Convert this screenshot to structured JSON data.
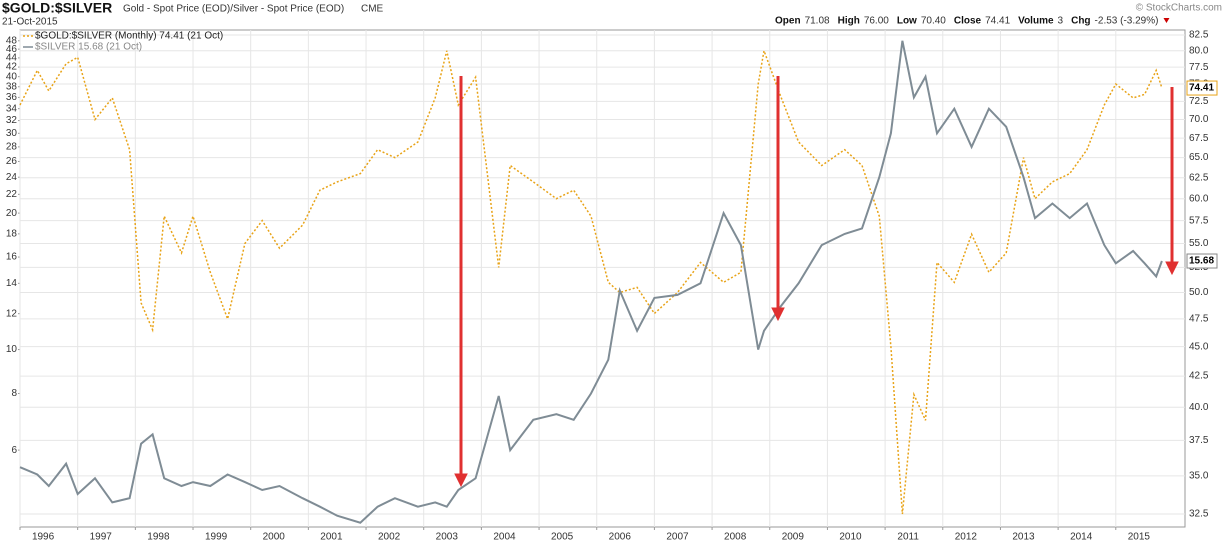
{
  "chart_data": {
    "type": "line",
    "title": "$GOLD:$SILVER",
    "subtitle": "Gold - Spot Price (EOD)/Silver - Spot Price (EOD)",
    "exchange": "CME",
    "date": "21-Oct-2015",
    "credit": "© StockCharts.com",
    "quote": [
      {
        "label": "Open",
        "value": "71.08"
      },
      {
        "label": "High",
        "value": "76.00"
      },
      {
        "label": "Low",
        "value": "70.40"
      },
      {
        "label": "Close",
        "value": "74.41"
      },
      {
        "label": "Volume",
        "value": "3"
      },
      {
        "label": "Chg",
        "value": "-2.53 (-3.29%)"
      }
    ],
    "x": [
      1996.0,
      1996.3,
      1996.5,
      1996.8,
      1997.0,
      1997.3,
      1997.6,
      1997.9,
      1998.1,
      1998.3,
      1998.5,
      1998.8,
      1999.0,
      1999.3,
      1999.6,
      1999.9,
      2000.2,
      2000.5,
      2000.9,
      2001.2,
      2001.5,
      2001.9,
      2002.2,
      2002.5,
      2002.9,
      2003.2,
      2003.4,
      2003.6,
      2003.9,
      2004.3,
      2004.5,
      2004.9,
      2005.3,
      2005.6,
      2005.9,
      2006.2,
      2006.4,
      2006.7,
      2007.0,
      2007.4,
      2007.8,
      2008.2,
      2008.5,
      2008.8,
      2008.9,
      2009.2,
      2009.5,
      2009.9,
      2010.3,
      2010.6,
      2010.9,
      2011.1,
      2011.3,
      2011.5,
      2011.7,
      2011.9,
      2012.2,
      2012.5,
      2012.8,
      2013.1,
      2013.4,
      2013.6,
      2013.9,
      2014.2,
      2014.5,
      2014.8,
      2015.0,
      2015.3,
      2015.5,
      2015.7,
      2015.8
    ],
    "series": [
      {
        "name": "$GOLD:$SILVER (Monthly) 74.41 (21 Oct)",
        "color": "#e8a317",
        "axis": "y2",
        "dashed": true,
        "values": [
          72,
          77,
          74,
          78,
          79,
          70,
          73,
          66,
          49,
          46.5,
          58,
          54,
          58,
          52,
          47.5,
          55,
          57.5,
          54.5,
          57,
          61,
          62,
          63,
          66,
          65,
          67,
          73,
          80,
          72,
          76,
          52.5,
          64,
          62,
          60,
          61,
          58,
          51,
          50,
          50.5,
          48,
          50,
          53,
          51,
          52,
          75,
          80,
          73,
          67,
          64,
          66,
          64,
          58,
          45,
          32.5,
          41,
          39,
          53,
          51,
          56,
          52,
          54,
          65,
          60,
          62,
          63,
          66,
          72,
          75,
          73,
          73.5,
          77,
          74.41
        ]
      },
      {
        "name": "$SILVER 15.68 (21 Oct)",
        "color": "#7f8c95",
        "axis": "y",
        "values": [
          5.5,
          5.3,
          5.0,
          5.6,
          4.8,
          5.2,
          4.6,
          4.7,
          6.2,
          6.5,
          5.2,
          5.0,
          5.1,
          5.0,
          5.3,
          5.1,
          4.9,
          5.0,
          4.7,
          4.5,
          4.3,
          4.15,
          4.5,
          4.7,
          4.5,
          4.6,
          4.5,
          4.9,
          5.2,
          7.9,
          6.0,
          7.0,
          7.2,
          7.0,
          8.0,
          9.5,
          13.5,
          11,
          13,
          13.2,
          14,
          20,
          17,
          10,
          11,
          12.5,
          14,
          17,
          18,
          18.5,
          24,
          30,
          48,
          36,
          40,
          30,
          34,
          28,
          34,
          31,
          24,
          19.5,
          21,
          19.5,
          21,
          17,
          15.5,
          16.5,
          15.5,
          14.5,
          15.68
        ]
      }
    ],
    "xlim": [
      1996.0,
      2016.2
    ],
    "xticks": [
      1996,
      1997,
      1998,
      1999,
      2000,
      2001,
      2002,
      2003,
      2004,
      2005,
      2006,
      2007,
      2008,
      2009,
      2010,
      2011,
      2012,
      2013,
      2014,
      2015
    ],
    "ylim": [
      4.06,
      50.7
    ],
    "yticks": [
      6,
      8,
      10,
      12,
      14,
      16,
      18,
      20,
      22,
      24,
      26,
      28,
      30,
      32,
      34,
      36,
      38,
      40,
      42,
      44,
      46,
      48
    ],
    "y2lim": [
      31.69,
      83.3
    ],
    "y2ticks": [
      32.5,
      {
        "value": 35,
        "label": "35.0"
      },
      37.5,
      {
        "value": 40,
        "label": "40.0"
      },
      42.5,
      {
        "value": 45,
        "label": "45.0"
      },
      47.5,
      {
        "value": 50,
        "label": "50.0"
      },
      52.5,
      {
        "value": 55,
        "label": "55.0"
      },
      57.5,
      {
        "value": 60,
        "label": "60.0"
      },
      62.5,
      {
        "value": 65,
        "label": "65.0"
      },
      67.5,
      {
        "value": 70,
        "label": "70.0"
      },
      72.5,
      {
        "value": 75,
        "label": "75.0"
      },
      77.5,
      {
        "value": 80,
        "label": "80.0"
      },
      82.5
    ],
    "log_scale": true,
    "grid": true
  }
}
